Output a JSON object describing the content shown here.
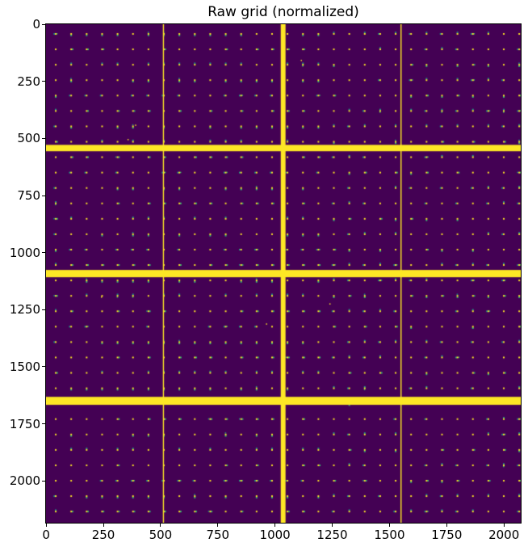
{
  "title": "Raw grid (normalized)",
  "axes": {
    "x_ticks": [
      0,
      250,
      500,
      750,
      1000,
      1250,
      1500,
      1750,
      2000
    ],
    "y_ticks": [
      0,
      250,
      500,
      750,
      1000,
      1250,
      1500,
      1750,
      2000
    ]
  },
  "colors": {
    "figure_background": "#ffffff",
    "axis_line": "#000000",
    "text": "#000000"
  },
  "chart_data": {
    "type": "heatmap",
    "title": "Raw grid (normalized)",
    "colormap": "viridis",
    "xlim": [
      -0.5,
      2073.5
    ],
    "ylim": [
      -0.5,
      2183.5
    ],
    "y_axis_inverted_image_style": true,
    "x_ticks": [
      0,
      250,
      500,
      750,
      1000,
      1250,
      1500,
      1750,
      2000
    ],
    "y_ticks": [
      0,
      250,
      500,
      750,
      1000,
      1250,
      1500,
      1750,
      2000
    ],
    "background_color": "#440154",
    "dot_color": "#fde725",
    "accent_colors": [
      "#21918c",
      "#35b779"
    ],
    "accent_fraction": 0.6,
    "dot_grid": {
      "x_start": 42,
      "y_start": 42,
      "x_step": 67.5,
      "y_step": 67.5,
      "n_cols": 31,
      "n_rows": 32,
      "dot_size": 7
    },
    "horizontal_bands": [
      {
        "y": 528,
        "height": 28
      },
      {
        "y": 1076,
        "height": 32
      },
      {
        "y": 1632,
        "height": 35
      }
    ],
    "vertical_lines": [
      {
        "x": 510,
        "width": 5
      },
      {
        "x": 1025,
        "width": 21
      },
      {
        "x": 1548,
        "width": 5
      }
    ],
    "noise_points": [
      [
        963,
        1313
      ],
      [
        391,
        442
      ],
      [
        1240,
        1225
      ],
      [
        358,
        505
      ],
      [
        242,
        1195
      ],
      [
        1115,
        158
      ]
    ]
  }
}
